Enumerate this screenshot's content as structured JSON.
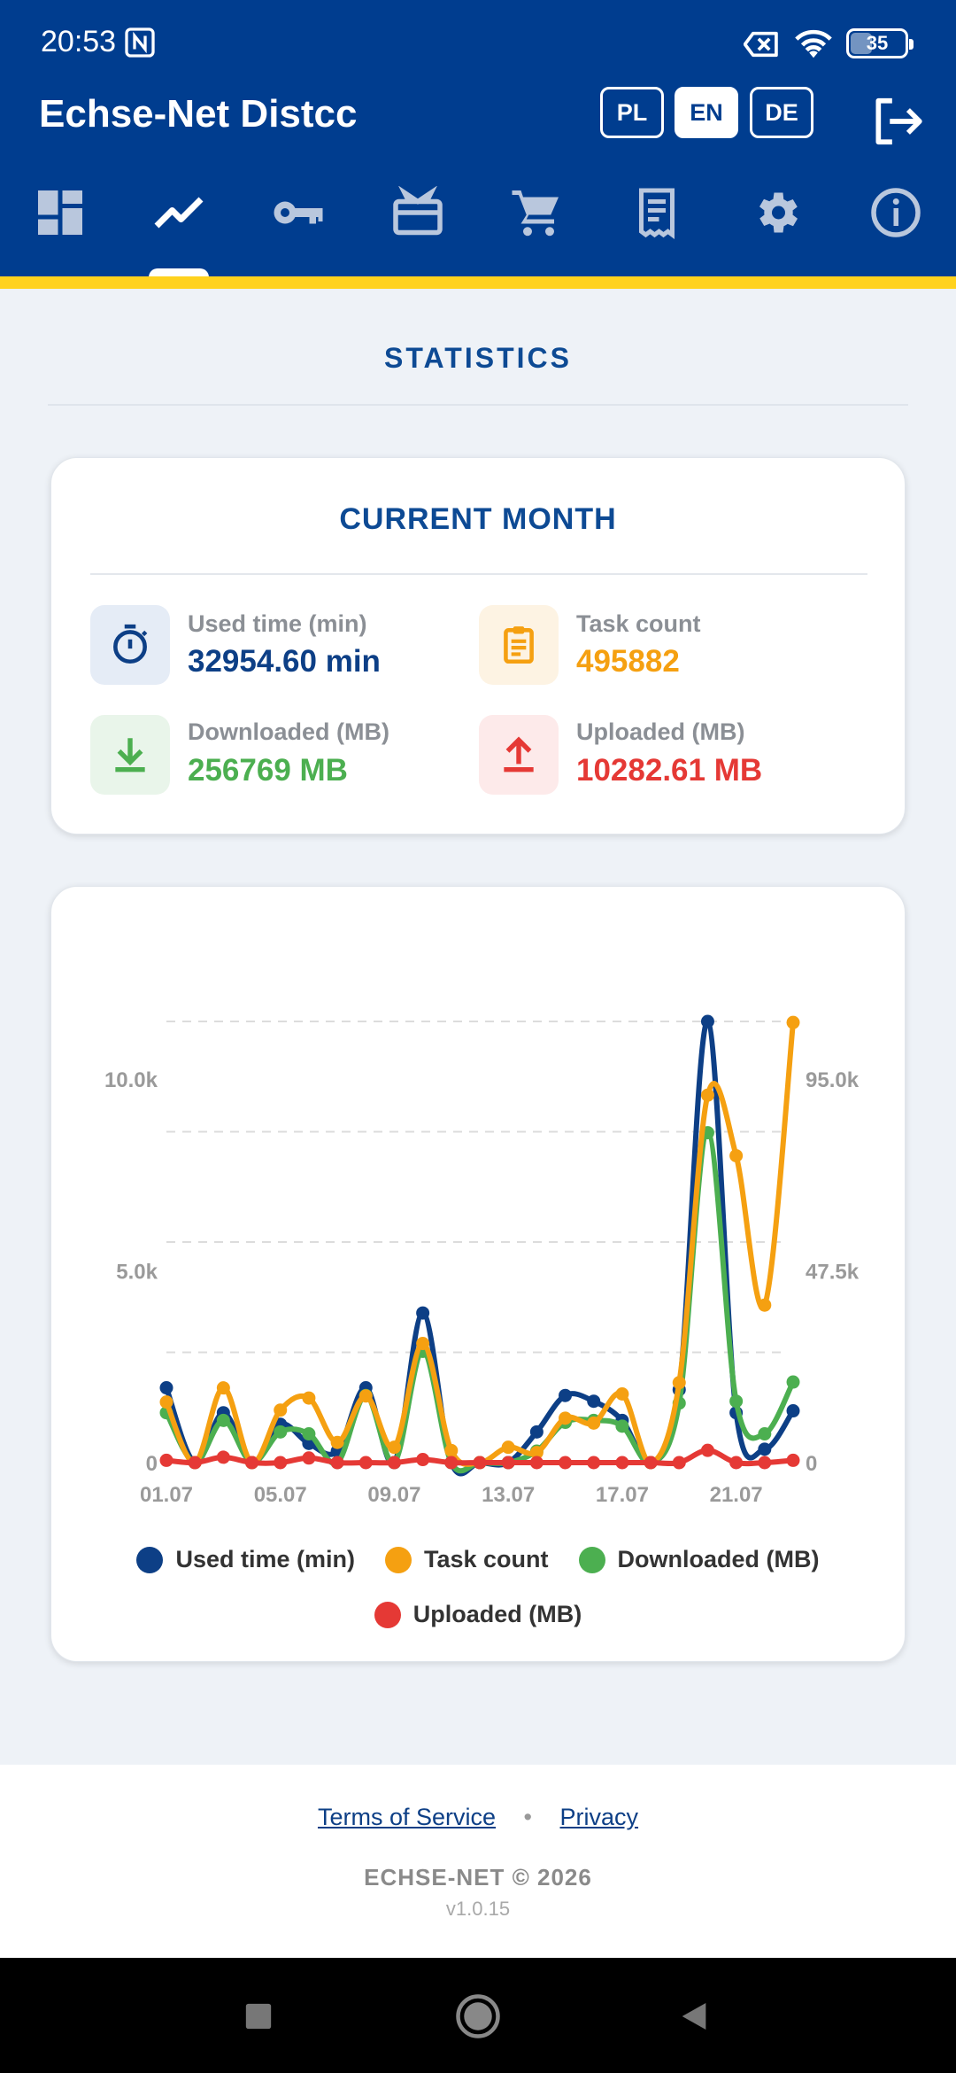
{
  "status_bar": {
    "time": "20:53",
    "battery": "35"
  },
  "header": {
    "title": "Echse-Net Distcc",
    "languages": [
      {
        "code": "PL",
        "active": false
      },
      {
        "code": "EN",
        "active": true
      },
      {
        "code": "DE",
        "active": false
      }
    ],
    "nav_tabs": [
      {
        "name": "dashboard-icon",
        "active": false
      },
      {
        "name": "statistics-icon",
        "active": true
      },
      {
        "name": "key-icon",
        "active": false
      },
      {
        "name": "gift-card-icon",
        "active": false
      },
      {
        "name": "cart-icon",
        "active": false
      },
      {
        "name": "receipt-icon",
        "active": false
      },
      {
        "name": "settings-icon",
        "active": false
      },
      {
        "name": "info-icon",
        "active": false
      }
    ]
  },
  "page": {
    "title": "STATISTICS"
  },
  "current_month": {
    "title": "CURRENT MONTH",
    "stats": [
      {
        "label": "Used time (min)",
        "value": "32954.60 min",
        "color": "#0d3f86",
        "icon": "timer-icon",
        "bg": "#e5ecf6"
      },
      {
        "label": "Task count",
        "value": "495882",
        "color": "#f5a011",
        "icon": "clipboard-icon",
        "bg": "#fdf3e3"
      },
      {
        "label": "Downloaded (MB)",
        "value": "256769 MB",
        "color": "#4caf50",
        "icon": "download-icon",
        "bg": "#e9f5ea"
      },
      {
        "label": "Uploaded (MB)",
        "value": "10282.61 MB",
        "color": "#e53935",
        "icon": "upload-icon",
        "bg": "#fdeaea"
      }
    ]
  },
  "chart_data": {
    "type": "line",
    "categories": [
      "01.07",
      "02.07",
      "03.07",
      "04.07",
      "05.07",
      "06.07",
      "07.07",
      "08.07",
      "09.07",
      "10.07",
      "11.07",
      "12.07",
      "13.07",
      "14.07",
      "15.07",
      "16.07",
      "17.07",
      "18.07",
      "19.07",
      "20.07",
      "21.07",
      "22.07",
      "23.07"
    ],
    "x_tick_labels": [
      "01.07",
      "05.07",
      "09.07",
      "13.07",
      "17.07",
      "21.07"
    ],
    "y_left": {
      "ticks": [
        "0",
        "5.0k",
        "10.0k"
      ],
      "ylim": [
        0,
        11500
      ]
    },
    "y_right": {
      "ticks": [
        "0",
        "47.5k",
        "95.0k"
      ],
      "ylim": [
        0,
        109250
      ]
    },
    "grid": true,
    "legend_position": "bottom",
    "series": [
      {
        "name": "Used time (min)",
        "color": "#0d3f86",
        "axis": "left",
        "values": [
          1950,
          0,
          1300,
          0,
          1000,
          500,
          300,
          1950,
          0,
          3900,
          0,
          0,
          0,
          800,
          1750,
          1600,
          1100,
          0,
          1900,
          11500,
          1300,
          350,
          1350
        ]
      },
      {
        "name": "Task count",
        "color": "#f5a011",
        "axis": "right",
        "values": [
          15000,
          0,
          18500,
          0,
          13000,
          16000,
          5000,
          16500,
          3800,
          29500,
          3000,
          0,
          3800,
          2500,
          11000,
          9800,
          17000,
          0,
          19800,
          91000,
          76000,
          39000,
          109000
        ]
      },
      {
        "name": "Downloaded (MB)",
        "color": "#4caf50",
        "axis": "left",
        "values": [
          1300,
          0,
          1100,
          0,
          800,
          750,
          0,
          1750,
          0,
          2900,
          0,
          0,
          0,
          300,
          1050,
          1100,
          950,
          0,
          1550,
          8600,
          1600,
          750,
          2100
        ]
      },
      {
        "name": "Uploaded (MB)",
        "color": "#e53935",
        "axis": "left",
        "values": [
          60,
          0,
          140,
          0,
          0,
          120,
          0,
          0,
          0,
          80,
          0,
          0,
          0,
          0,
          0,
          0,
          0,
          0,
          0,
          320,
          0,
          0,
          60
        ]
      }
    ]
  },
  "footer": {
    "terms": "Terms of Service",
    "separator": "•",
    "privacy": "Privacy",
    "copyright": "ECHSE-NET © 2026",
    "version": "v1.0.15"
  }
}
